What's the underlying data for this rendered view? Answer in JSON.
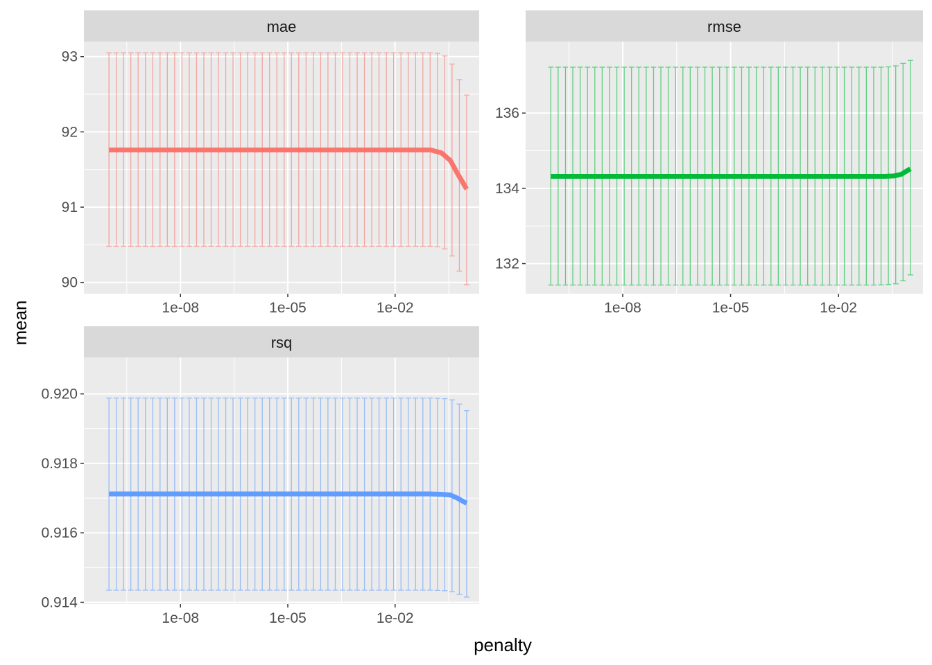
{
  "chart_data": {
    "type": "line",
    "xlabel": "penalty",
    "ylabel": "mean",
    "x_scale": "log10",
    "x_ticks": [
      "1e-08",
      "1e-05",
      "1e-02"
    ],
    "grid": true,
    "legend": "none",
    "panels": [
      {
        "metric": "mae",
        "color": "#F8766D",
        "ylim": [
          89.85,
          93.2
        ],
        "y_ticks": [
          "90",
          "91",
          "92",
          "93"
        ],
        "y_tick_values": [
          90,
          91,
          92,
          93
        ],
        "series": [
          {
            "x": 1e-10,
            "mean": 91.76,
            "lo": 90.48,
            "hi": 93.05
          },
          {
            "x": 1e-07,
            "mean": 91.76,
            "lo": 90.48,
            "hi": 93.05
          },
          {
            "x": 0.0001,
            "mean": 91.76,
            "lo": 90.48,
            "hi": 93.05
          },
          {
            "x": 0.01,
            "mean": 91.76,
            "lo": 90.48,
            "hi": 93.05
          },
          {
            "x": 0.1,
            "mean": 91.76,
            "lo": 90.48,
            "hi": 93.05
          },
          {
            "x": 0.2,
            "mean": 91.72,
            "lo": 90.47,
            "hi": 93.04
          },
          {
            "x": 0.35,
            "mean": 91.62,
            "lo": 90.4,
            "hi": 92.95
          },
          {
            "x": 0.55,
            "mean": 91.45,
            "lo": 90.2,
            "hi": 92.75
          },
          {
            "x": 1.0,
            "mean": 91.24,
            "lo": 89.97,
            "hi": 92.49
          }
        ]
      },
      {
        "metric": "rmse",
        "color": "#00BA38",
        "ylim": [
          131.2,
          137.9
        ],
        "y_ticks": [
          "132",
          "134",
          "136"
        ],
        "y_tick_values": [
          132,
          134,
          136
        ],
        "series": [
          {
            "x": 1e-10,
            "mean": 134.32,
            "lo": 131.43,
            "hi": 137.22
          },
          {
            "x": 1e-07,
            "mean": 134.32,
            "lo": 131.43,
            "hi": 137.22
          },
          {
            "x": 0.0001,
            "mean": 134.32,
            "lo": 131.43,
            "hi": 137.22
          },
          {
            "x": 0.01,
            "mean": 134.32,
            "lo": 131.43,
            "hi": 137.22
          },
          {
            "x": 0.1,
            "mean": 134.32,
            "lo": 131.43,
            "hi": 137.22
          },
          {
            "x": 0.2,
            "mean": 134.32,
            "lo": 131.44,
            "hi": 137.22
          },
          {
            "x": 0.35,
            "mean": 134.33,
            "lo": 131.45,
            "hi": 137.24
          },
          {
            "x": 0.55,
            "mean": 134.37,
            "lo": 131.5,
            "hi": 137.3
          },
          {
            "x": 1.0,
            "mean": 134.52,
            "lo": 131.7,
            "hi": 137.4
          }
        ]
      },
      {
        "metric": "rsq",
        "color": "#619CFF",
        "ylim": [
          0.91395,
          0.92105
        ],
        "y_ticks": [
          "0.914",
          "0.916",
          "0.918",
          "0.920"
        ],
        "y_tick_values": [
          0.914,
          0.916,
          0.918,
          0.92
        ],
        "series": [
          {
            "x": 1e-10,
            "mean": 0.91712,
            "lo": 0.91435,
            "hi": 0.91988
          },
          {
            "x": 1e-07,
            "mean": 0.91712,
            "lo": 0.91435,
            "hi": 0.91988
          },
          {
            "x": 0.0001,
            "mean": 0.91712,
            "lo": 0.91435,
            "hi": 0.91988
          },
          {
            "x": 0.01,
            "mean": 0.91712,
            "lo": 0.91435,
            "hi": 0.91988
          },
          {
            "x": 0.1,
            "mean": 0.91712,
            "lo": 0.91435,
            "hi": 0.91988
          },
          {
            "x": 0.2,
            "mean": 0.91711,
            "lo": 0.91434,
            "hi": 0.91987
          },
          {
            "x": 0.35,
            "mean": 0.91709,
            "lo": 0.91432,
            "hi": 0.91985
          },
          {
            "x": 0.55,
            "mean": 0.917,
            "lo": 0.91425,
            "hi": 0.91976
          },
          {
            "x": 1.0,
            "mean": 0.91685,
            "lo": 0.91415,
            "hi": 0.91952
          }
        ]
      }
    ]
  }
}
